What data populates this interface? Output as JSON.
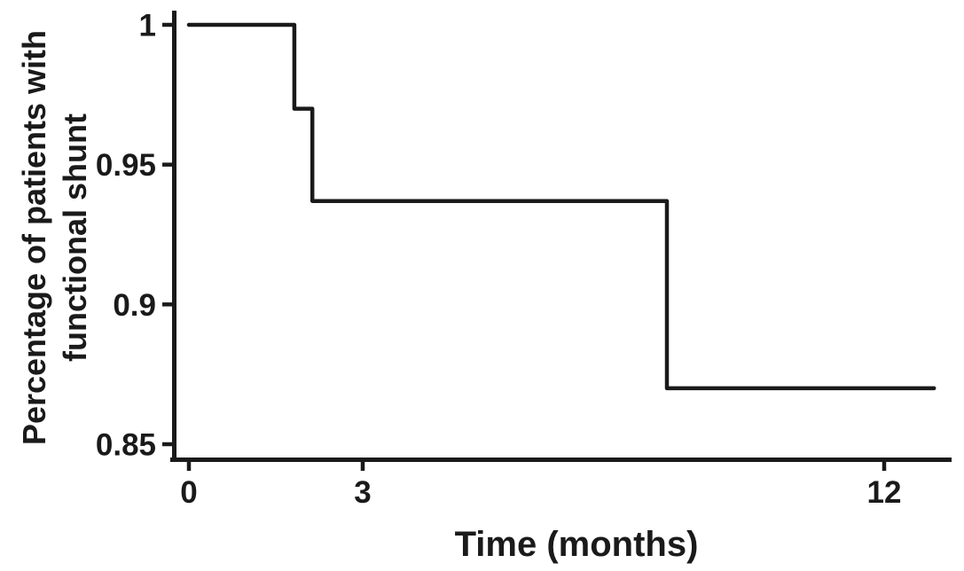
{
  "figure": {
    "background": "#ffffff",
    "ink_color": "#1a1a1a"
  },
  "chart_data": {
    "type": "line",
    "subtype": "kaplan_meier_step_curve",
    "title": "",
    "xlabel": "Time (months)",
    "ylabel_lines": [
      "Percentage of patients with",
      "functional shunt"
    ],
    "x_ticks": [
      {
        "value": 0,
        "label": "0"
      },
      {
        "value": 3,
        "label": "3"
      },
      {
        "value": 12,
        "label": "12"
      }
    ],
    "y_ticks": [
      {
        "value": 1.0,
        "label": "1"
      },
      {
        "value": 0.95,
        "label": "0.95"
      },
      {
        "value": 0.9,
        "label": "0.9"
      },
      {
        "value": 0.85,
        "label": "0.85"
      }
    ],
    "xlim": [
      0,
      13.2
    ],
    "ylim": [
      0.843,
      1.005
    ],
    "grid": false,
    "legend": "none",
    "series": [
      {
        "name": "Patients with functional shunt",
        "points": [
          [
            0,
            1.0
          ],
          [
            1.82,
            1.0
          ],
          [
            1.82,
            0.97
          ],
          [
            2.13,
            0.97
          ],
          [
            2.13,
            0.937
          ],
          [
            8.25,
            0.937
          ],
          [
            8.25,
            0.87
          ],
          [
            12.86,
            0.87
          ]
        ]
      }
    ],
    "step_events": [
      {
        "time_months": 1.82,
        "survival": 0.97
      },
      {
        "time_months": 2.13,
        "survival": 0.937
      },
      {
        "time_months": 8.25,
        "survival": 0.87
      }
    ]
  }
}
